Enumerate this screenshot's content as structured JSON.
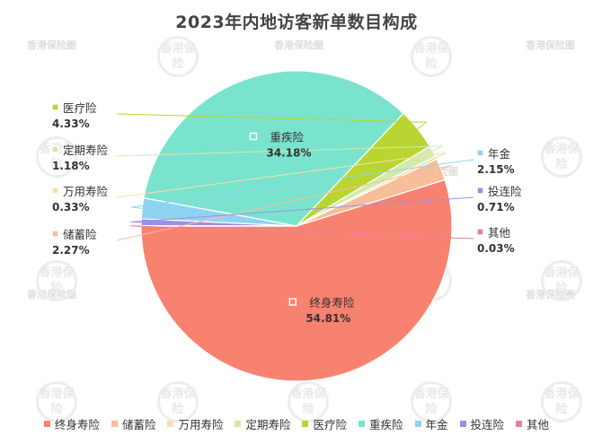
{
  "chart_data": {
    "type": "pie",
    "title": "2023年内地访客新单数目构成",
    "slices": [
      {
        "name": "终身寿险",
        "value": 54.81,
        "label": "54.81%",
        "color": "#f88270"
      },
      {
        "name": "储蓄险",
        "value": 2.27,
        "label": "2.27%",
        "color": "#f7be9a"
      },
      {
        "name": "万用寿险",
        "value": 0.33,
        "label": "0.33%",
        "color": "#f9dfae"
      },
      {
        "name": "定期寿险",
        "value": 1.18,
        "label": "1.18%",
        "color": "#d3eaac"
      },
      {
        "name": "医疗险",
        "value": 4.33,
        "label": "4.33%",
        "color": "#b9d531"
      },
      {
        "name": "重疾险",
        "value": 34.18,
        "label": "34.18%",
        "color": "#7ae3cd"
      },
      {
        "name": "年金",
        "value": 2.15,
        "label": "2.15%",
        "color": "#8fd3f2"
      },
      {
        "name": "投连险",
        "value": 0.71,
        "label": "0.71%",
        "color": "#9d8fe6"
      },
      {
        "name": "其他",
        "value": 0.03,
        "label": "0.03%",
        "color": "#e57ea0"
      }
    ]
  },
  "watermark": {
    "text": "香港保险圈",
    "seal": "香港保险"
  }
}
